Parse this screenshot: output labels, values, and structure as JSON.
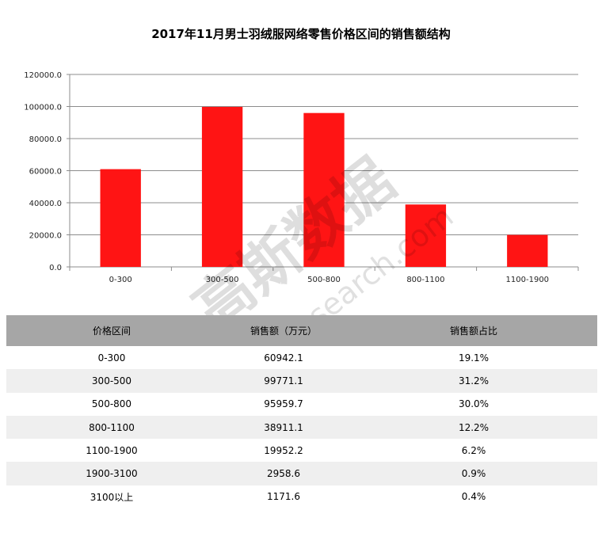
{
  "chart_data": {
    "type": "bar",
    "title": "2017年11月男士羽绒服网络零售价格区间的销售额结构",
    "categories": [
      "0-300",
      "300-500",
      "500-800",
      "800-1100",
      "1100-1900"
    ],
    "values": [
      60942.1,
      99771.1,
      95959.7,
      38911.1,
      19952.2
    ],
    "ylim": [
      0,
      120000
    ],
    "yticks": [
      "0.0",
      "20000.0",
      "40000.0",
      "60000.0",
      "80000.0",
      "100000.0",
      "120000.0"
    ],
    "ytick_values": [
      0,
      20000,
      40000,
      60000,
      80000,
      100000,
      120000
    ],
    "bar_color": "#ff1414",
    "grid": true,
    "legend": "none"
  },
  "table": {
    "headers": [
      "价格区间",
      "销售额（万元）",
      "销售额占比"
    ],
    "rows": [
      [
        "0-300",
        "60942.1",
        "19.1%"
      ],
      [
        "300-500",
        "99771.1",
        "31.2%"
      ],
      [
        "500-800",
        "95959.7",
        "30.0%"
      ],
      [
        "800-1100",
        "38911.1",
        "12.2%"
      ],
      [
        "1100-1900",
        "19952.2",
        "6.2%"
      ],
      [
        "1900-3100",
        "2958.6",
        "0.9%"
      ],
      [
        "3100以上",
        "1171.6",
        "0.4%"
      ]
    ]
  },
  "watermark": {
    "brand": "高斯数据",
    "site": "gaussearch.com"
  }
}
